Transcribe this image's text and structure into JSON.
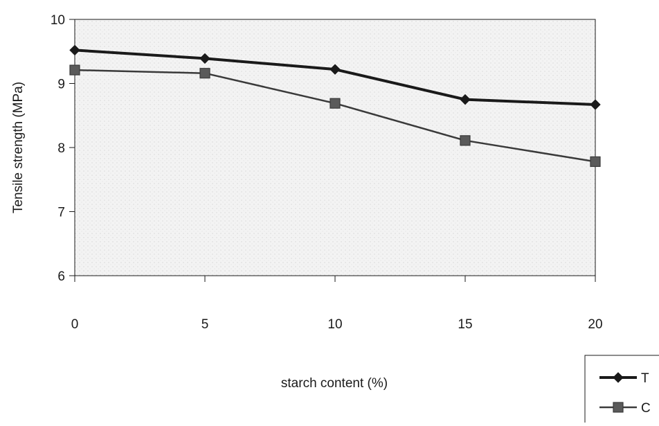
{
  "chart_data": {
    "type": "line",
    "title": "",
    "xlabel": "starch content (%)",
    "ylabel": "Tensile strength (MPa)",
    "x": [
      0,
      5,
      10,
      15,
      20
    ],
    "xlim": [
      0,
      20
    ],
    "ylim": [
      6,
      10
    ],
    "x_ticks": [
      "0",
      "5",
      "10",
      "15",
      "20"
    ],
    "y_ticks": [
      "6",
      "7",
      "8",
      "9",
      "10"
    ],
    "grid": false,
    "legend_position": "bottom-right",
    "series": [
      {
        "name": "T",
        "marker": "diamond",
        "color": "#1a1a1a",
        "values": [
          9.52,
          9.39,
          9.22,
          8.75,
          8.67
        ]
      },
      {
        "name": "C",
        "marker": "square",
        "color": "#3a3a3a",
        "values": [
          9.21,
          9.16,
          8.69,
          8.11,
          7.78
        ]
      }
    ]
  }
}
